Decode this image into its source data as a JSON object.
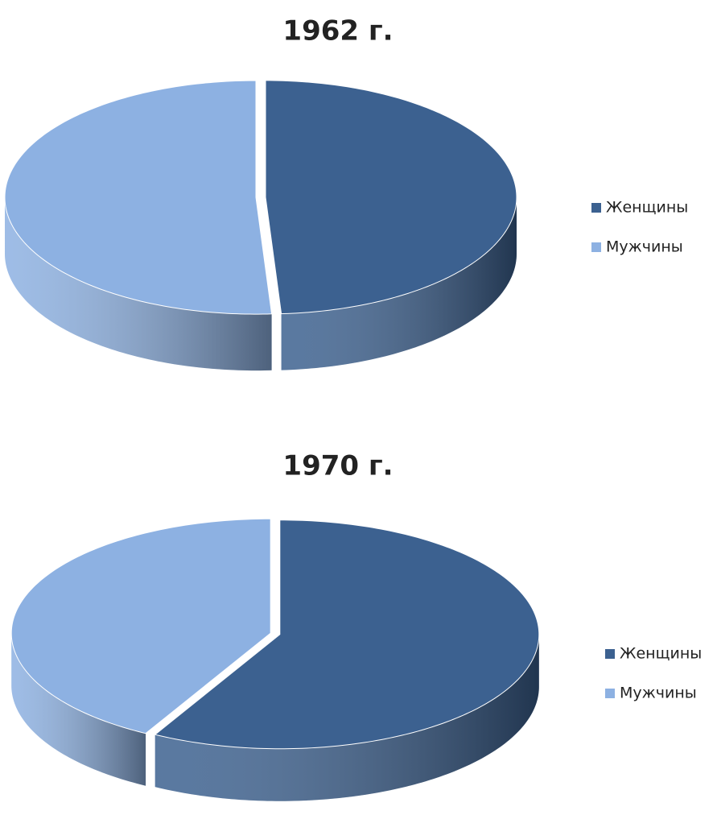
{
  "chart_data": [
    {
      "type": "pie",
      "title": "1962 г.",
      "categories": [
        "Женщины",
        "Мужчины"
      ],
      "values": [
        49,
        51
      ],
      "colors": [
        "#3c6190",
        "#8db1e2"
      ],
      "legend": "right"
    },
    {
      "type": "pie",
      "title": "1970 г.",
      "categories": [
        "Женщины",
        "Мужчины"
      ],
      "values": [
        58,
        42
      ],
      "colors": [
        "#3c6190",
        "#8db1e2"
      ],
      "legend": "right"
    }
  ]
}
